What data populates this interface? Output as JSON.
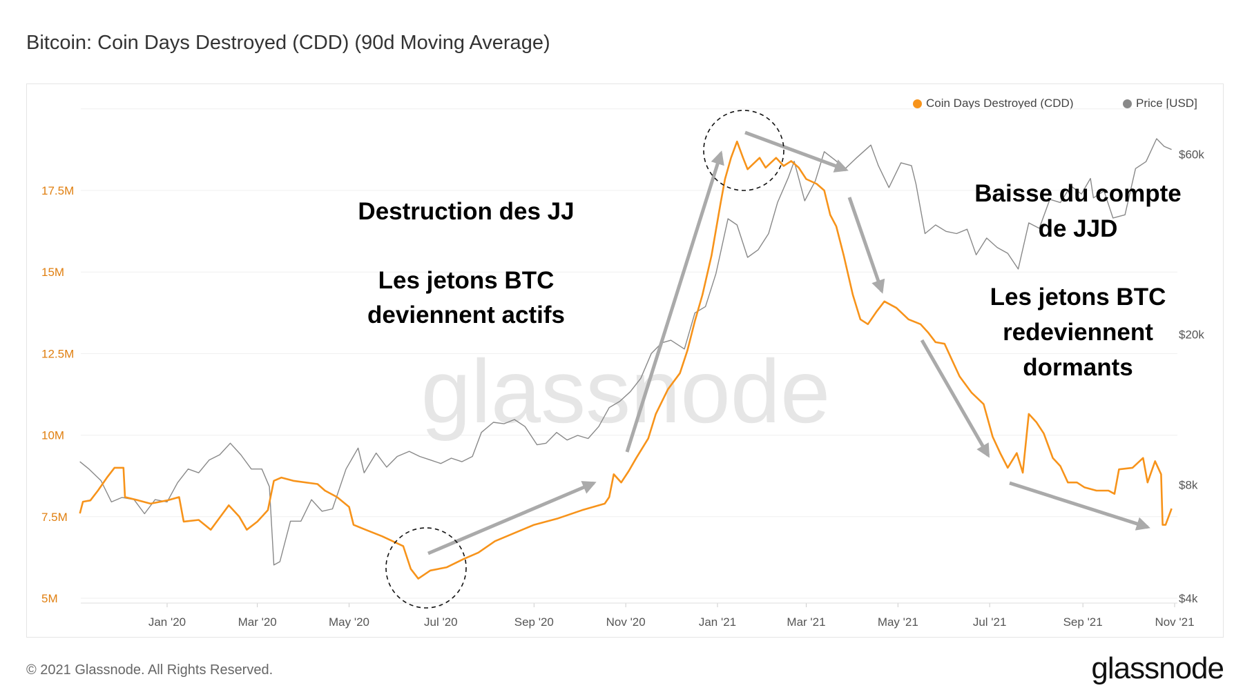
{
  "title": "Bitcoin: Coin Days Destroyed (CDD) (90d Moving Average)",
  "footer": "© 2021 Glassnode. All Rights Reserved.",
  "logo": "glassnode",
  "watermark": "glassnode",
  "colors": {
    "cdd": "#f7931a",
    "price": "#888888",
    "annotation": "#aaaaaa",
    "text": "#000000"
  },
  "legend": [
    {
      "label": "Coin Days Destroyed (CDD)",
      "color": "#f7931a"
    },
    {
      "label": "Price [USD]",
      "color": "#888888"
    }
  ],
  "annotations": {
    "left_lines": [
      "Destruction des JJ",
      "Les jetons BTC",
      "deviennent actifs"
    ],
    "right_top_lines": [
      "Baisse du compte",
      "de JJD"
    ],
    "right_bottom_lines": [
      "Les jetons BTC",
      "redeviennent",
      "dormants"
    ]
  },
  "chart_data": {
    "type": "line",
    "title": "Bitcoin: Coin Days Destroyed (CDD) (90d Moving Average)",
    "legend_placement": "top-right",
    "grid": true,
    "x_ticks": [
      "Jan '20",
      "Mar '20",
      "May '20",
      "Jul '20",
      "Sep '20",
      "Nov '20",
      "Jan '21",
      "Mar '21",
      "May '21",
      "Jul '21",
      "Sep '21",
      "Nov '21"
    ],
    "x_tick_dates": [
      "2020-01-01",
      "2020-03-01",
      "2020-05-01",
      "2020-07-01",
      "2020-09-01",
      "2020-11-01",
      "2021-01-01",
      "2021-03-01",
      "2021-05-01",
      "2021-07-01",
      "2021-09-01",
      "2021-11-01"
    ],
    "xlim": [
      "2019-11-04",
      "2021-11-01"
    ],
    "y_left": {
      "ticks": [
        5,
        7.5,
        10,
        12.5,
        15,
        17.5
      ],
      "tick_labels": [
        "5M",
        "7.5M",
        "10M",
        "12.5M",
        "15M",
        "17.5M"
      ],
      "ylim": [
        5,
        20
      ],
      "unit": "M"
    },
    "y_right": {
      "scale": "log",
      "ticks": [
        4000,
        8000,
        20000,
        60000
      ],
      "tick_labels": [
        "$4k",
        "$8k",
        "$20k",
        "$60k"
      ],
      "ylim": [
        4000,
        60000
      ]
    },
    "series": [
      {
        "name": "Coin Days Destroyed (CDD)",
        "axis": "left",
        "color": "#f7931a",
        "points": [
          [
            "2019-11-04",
            7.6
          ],
          [
            "2019-11-06",
            7.96
          ],
          [
            "2019-11-11",
            8.0
          ],
          [
            "2019-11-16",
            8.3
          ],
          [
            "2019-11-22",
            8.7
          ],
          [
            "2019-11-27",
            9.0
          ],
          [
            "2019-12-03",
            9.0
          ],
          [
            "2019-12-04",
            8.1
          ],
          [
            "2019-12-13",
            8.0
          ],
          [
            "2019-12-21",
            7.9
          ],
          [
            "2020-01-01",
            8.0
          ],
          [
            "2020-01-09",
            8.1
          ],
          [
            "2020-01-12",
            7.35
          ],
          [
            "2020-01-22",
            7.4
          ],
          [
            "2020-01-30",
            7.1
          ],
          [
            "2020-02-07",
            7.6
          ],
          [
            "2020-02-11",
            7.85
          ],
          [
            "2020-02-18",
            7.5
          ],
          [
            "2020-02-23",
            7.1
          ],
          [
            "2020-03-01",
            7.35
          ],
          [
            "2020-03-08",
            7.7
          ],
          [
            "2020-03-12",
            8.6
          ],
          [
            "2020-03-17",
            8.7
          ],
          [
            "2020-03-25",
            8.6
          ],
          [
            "2020-04-10",
            8.5
          ],
          [
            "2020-04-15",
            8.3
          ],
          [
            "2020-04-23",
            8.1
          ],
          [
            "2020-05-01",
            7.8
          ],
          [
            "2020-05-04",
            7.25
          ],
          [
            "2020-05-12",
            7.1
          ],
          [
            "2020-05-23",
            6.9
          ],
          [
            "2020-06-06",
            6.6
          ],
          [
            "2020-06-11",
            5.9
          ],
          [
            "2020-06-16",
            5.6
          ],
          [
            "2020-06-24",
            5.85
          ],
          [
            "2020-07-05",
            5.95
          ],
          [
            "2020-07-16",
            6.2
          ],
          [
            "2020-07-26",
            6.4
          ],
          [
            "2020-08-06",
            6.75
          ],
          [
            "2020-08-19",
            7.0
          ],
          [
            "2020-09-01",
            7.25
          ],
          [
            "2020-09-17",
            7.45
          ],
          [
            "2020-10-03",
            7.7
          ],
          [
            "2020-10-18",
            7.9
          ],
          [
            "2020-10-21",
            8.1
          ],
          [
            "2020-10-24",
            8.8
          ],
          [
            "2020-10-29",
            8.55
          ],
          [
            "2020-11-03",
            8.9
          ],
          [
            "2020-11-08",
            9.3
          ],
          [
            "2020-11-16",
            9.9
          ],
          [
            "2020-11-21",
            10.65
          ],
          [
            "2020-11-29",
            11.4
          ],
          [
            "2020-12-07",
            11.9
          ],
          [
            "2020-12-12",
            12.6
          ],
          [
            "2020-12-17",
            13.5
          ],
          [
            "2020-12-22",
            14.3
          ],
          [
            "2020-12-28",
            15.5
          ],
          [
            "2021-01-03",
            17.1
          ],
          [
            "2021-01-06",
            17.85
          ],
          [
            "2021-01-10",
            18.5
          ],
          [
            "2021-01-14",
            19.0
          ],
          [
            "2021-01-18",
            18.5
          ],
          [
            "2021-01-21",
            18.15
          ],
          [
            "2021-01-29",
            18.5
          ],
          [
            "2021-02-02",
            18.2
          ],
          [
            "2021-02-09",
            18.5
          ],
          [
            "2021-02-14",
            18.25
          ],
          [
            "2021-02-19",
            18.4
          ],
          [
            "2021-02-24",
            18.2
          ],
          [
            "2021-03-01",
            17.85
          ],
          [
            "2021-03-08",
            17.7
          ],
          [
            "2021-03-13",
            17.5
          ],
          [
            "2021-03-17",
            16.75
          ],
          [
            "2021-03-21",
            16.4
          ],
          [
            "2021-03-26",
            15.5
          ],
          [
            "2021-04-01",
            14.3
          ],
          [
            "2021-04-06",
            13.55
          ],
          [
            "2021-04-11",
            13.4
          ],
          [
            "2021-04-17",
            13.8
          ],
          [
            "2021-04-22",
            14.1
          ],
          [
            "2021-04-30",
            13.9
          ],
          [
            "2021-05-08",
            13.55
          ],
          [
            "2021-05-16",
            13.4
          ],
          [
            "2021-05-21",
            13.15
          ],
          [
            "2021-05-26",
            12.85
          ],
          [
            "2021-06-01",
            12.8
          ],
          [
            "2021-06-06",
            12.3
          ],
          [
            "2021-06-11",
            11.8
          ],
          [
            "2021-06-19",
            11.3
          ],
          [
            "2021-06-27",
            10.95
          ],
          [
            "2021-07-03",
            9.95
          ],
          [
            "2021-07-08",
            9.45
          ],
          [
            "2021-07-13",
            9.0
          ],
          [
            "2021-07-19",
            9.45
          ],
          [
            "2021-07-23",
            8.85
          ],
          [
            "2021-07-27",
            10.65
          ],
          [
            "2021-08-01",
            10.4
          ],
          [
            "2021-08-06",
            10.05
          ],
          [
            "2021-08-12",
            9.3
          ],
          [
            "2021-08-17",
            9.05
          ],
          [
            "2021-08-22",
            8.55
          ],
          [
            "2021-08-28",
            8.55
          ],
          [
            "2021-09-02",
            8.4
          ],
          [
            "2021-09-10",
            8.3
          ],
          [
            "2021-09-18",
            8.3
          ],
          [
            "2021-09-22",
            8.2
          ],
          [
            "2021-09-25",
            8.95
          ],
          [
            "2021-10-04",
            9.0
          ],
          [
            "2021-10-11",
            9.3
          ],
          [
            "2021-10-14",
            8.55
          ],
          [
            "2021-10-19",
            9.2
          ],
          [
            "2021-10-23",
            8.8
          ],
          [
            "2021-10-24",
            7.25
          ],
          [
            "2021-10-26",
            7.25
          ],
          [
            "2021-10-30",
            7.75
          ]
        ]
      },
      {
        "name": "Price [USD]",
        "axis": "right",
        "color": "#888888",
        "points": [
          [
            "2019-11-04",
            9200
          ],
          [
            "2019-11-10",
            8800
          ],
          [
            "2019-11-18",
            8200
          ],
          [
            "2019-11-25",
            7200
          ],
          [
            "2019-12-02",
            7400
          ],
          [
            "2019-12-10",
            7300
          ],
          [
            "2019-12-17",
            6700
          ],
          [
            "2019-12-24",
            7300
          ],
          [
            "2020-01-01",
            7200
          ],
          [
            "2020-01-08",
            8100
          ],
          [
            "2020-01-15",
            8800
          ],
          [
            "2020-01-22",
            8600
          ],
          [
            "2020-01-29",
            9300
          ],
          [
            "2020-02-05",
            9600
          ],
          [
            "2020-02-12",
            10300
          ],
          [
            "2020-02-19",
            9600
          ],
          [
            "2020-02-26",
            8800
          ],
          [
            "2020-03-04",
            8800
          ],
          [
            "2020-03-09",
            7900
          ],
          [
            "2020-03-12",
            4900
          ],
          [
            "2020-03-16",
            5000
          ],
          [
            "2020-03-23",
            6400
          ],
          [
            "2020-03-30",
            6400
          ],
          [
            "2020-04-06",
            7300
          ],
          [
            "2020-04-13",
            6800
          ],
          [
            "2020-04-20",
            6900
          ],
          [
            "2020-04-29",
            8800
          ],
          [
            "2020-05-07",
            10000
          ],
          [
            "2020-05-11",
            8600
          ],
          [
            "2020-05-19",
            9700
          ],
          [
            "2020-05-26",
            8900
          ],
          [
            "2020-06-02",
            9500
          ],
          [
            "2020-06-10",
            9800
          ],
          [
            "2020-06-17",
            9500
          ],
          [
            "2020-06-24",
            9300
          ],
          [
            "2020-07-01",
            9100
          ],
          [
            "2020-07-08",
            9400
          ],
          [
            "2020-07-15",
            9200
          ],
          [
            "2020-07-22",
            9500
          ],
          [
            "2020-07-28",
            11000
          ],
          [
            "2020-08-05",
            11700
          ],
          [
            "2020-08-12",
            11600
          ],
          [
            "2020-08-19",
            11900
          ],
          [
            "2020-08-26",
            11400
          ],
          [
            "2020-09-03",
            10200
          ],
          [
            "2020-09-09",
            10300
          ],
          [
            "2020-09-16",
            11000
          ],
          [
            "2020-09-23",
            10500
          ],
          [
            "2020-09-30",
            10800
          ],
          [
            "2020-10-07",
            10600
          ],
          [
            "2020-10-14",
            11400
          ],
          [
            "2020-10-21",
            12800
          ],
          [
            "2020-10-28",
            13300
          ],
          [
            "2020-11-04",
            14100
          ],
          [
            "2020-11-11",
            15300
          ],
          [
            "2020-11-18",
            17800
          ],
          [
            "2020-11-25",
            19000
          ],
          [
            "2020-12-01",
            19300
          ],
          [
            "2020-12-10",
            18300
          ],
          [
            "2020-12-17",
            22800
          ],
          [
            "2020-12-24",
            23700
          ],
          [
            "2020-12-31",
            29000
          ],
          [
            "2021-01-08",
            40500
          ],
          [
            "2021-01-14",
            39000
          ],
          [
            "2021-01-21",
            32000
          ],
          [
            "2021-01-28",
            33500
          ],
          [
            "2021-02-04",
            37000
          ],
          [
            "2021-02-10",
            44800
          ],
          [
            "2021-02-17",
            52000
          ],
          [
            "2021-02-21",
            57500
          ],
          [
            "2021-02-28",
            45200
          ],
          [
            "2021-03-07",
            51000
          ],
          [
            "2021-03-13",
            61000
          ],
          [
            "2021-03-20",
            58000
          ],
          [
            "2021-03-27",
            55000
          ],
          [
            "2021-04-03",
            58500
          ],
          [
            "2021-04-13",
            63500
          ],
          [
            "2021-04-18",
            56000
          ],
          [
            "2021-04-25",
            49000
          ],
          [
            "2021-05-03",
            57000
          ],
          [
            "2021-05-10",
            56000
          ],
          [
            "2021-05-13",
            50000
          ],
          [
            "2021-05-19",
            37000
          ],
          [
            "2021-05-26",
            39000
          ],
          [
            "2021-06-02",
            37500
          ],
          [
            "2021-06-09",
            37000
          ],
          [
            "2021-06-16",
            38000
          ],
          [
            "2021-06-22",
            32500
          ],
          [
            "2021-06-29",
            36000
          ],
          [
            "2021-07-06",
            34000
          ],
          [
            "2021-07-13",
            32800
          ],
          [
            "2021-07-20",
            29800
          ],
          [
            "2021-07-27",
            39500
          ],
          [
            "2021-08-03",
            38200
          ],
          [
            "2021-08-10",
            45600
          ],
          [
            "2021-08-17",
            44700
          ],
          [
            "2021-08-24",
            49500
          ],
          [
            "2021-08-31",
            47100
          ],
          [
            "2021-09-06",
            51800
          ],
          [
            "2021-09-08",
            46000
          ],
          [
            "2021-09-15",
            48000
          ],
          [
            "2021-09-21",
            40700
          ],
          [
            "2021-09-29",
            41500
          ],
          [
            "2021-10-06",
            55000
          ],
          [
            "2021-10-13",
            57400
          ],
          [
            "2021-10-20",
            66000
          ],
          [
            "2021-10-25",
            63000
          ],
          [
            "2021-10-30",
            61800
          ]
        ]
      }
    ]
  }
}
